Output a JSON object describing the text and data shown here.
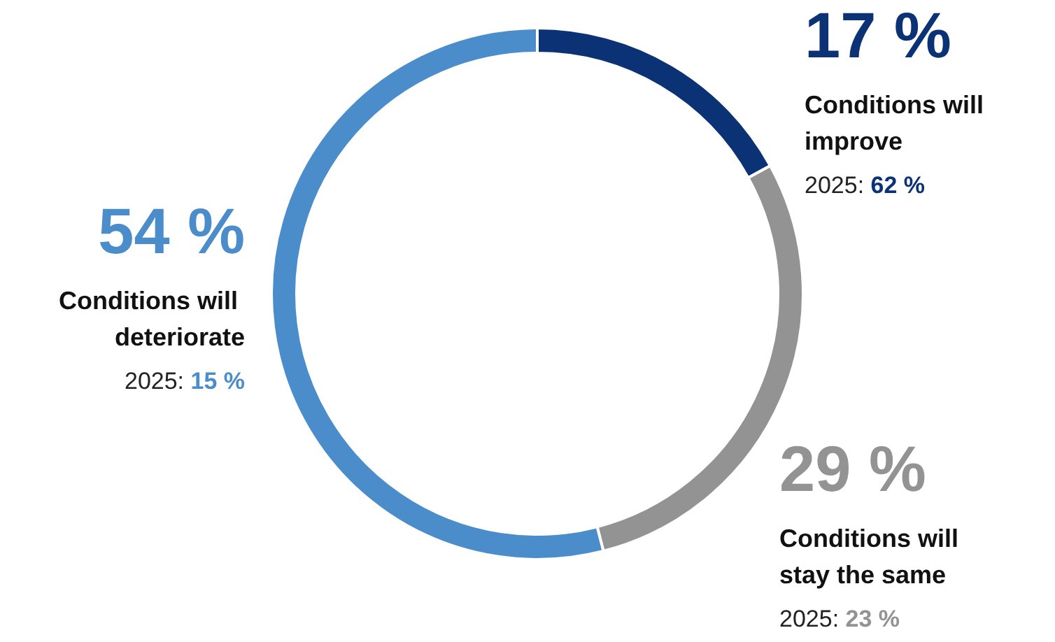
{
  "chart_data": {
    "type": "donut",
    "categories": [
      "Conditions will improve",
      "Conditions will stay the same",
      "Conditions will deteriorate"
    ],
    "values": [
      17,
      29,
      54
    ],
    "colors": [
      "#0b3275",
      "#939393",
      "#4a8dca"
    ],
    "value_labels": [
      "17 %",
      "29 %",
      "54 %"
    ],
    "annotations": [
      "2025: 62 %",
      "2025: 23 %",
      "2025: 15 %"
    ],
    "legend": false
  }
}
